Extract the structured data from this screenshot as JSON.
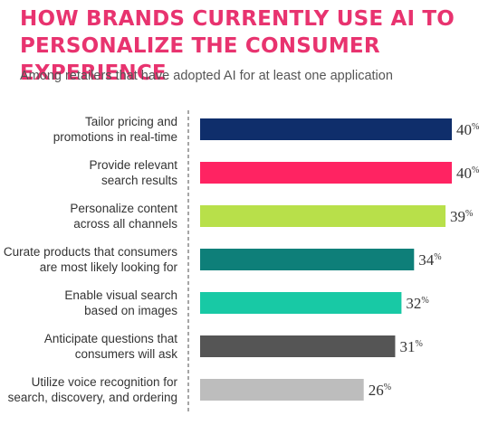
{
  "title": "HOW BRANDS CURRENTLY USE AI TO PERSONALIZE THE CONSUMER EXPERIENCE",
  "subtitle": "Among retailers that have adopted AI for at least one application",
  "chart_data": {
    "type": "bar",
    "orientation": "horizontal",
    "categories": [
      [
        "Tailor pricing and",
        "promotions in real-time"
      ],
      [
        "Provide relevant",
        "search results"
      ],
      [
        "Personalize content",
        "across all channels"
      ],
      [
        "Curate products that consumers",
        "are most likely looking for"
      ],
      [
        "Enable visual search",
        "based on images"
      ],
      [
        "Anticipate questions that",
        "consumers will ask"
      ],
      [
        "Utilize voice recognition for",
        "search, discovery, and ordering"
      ]
    ],
    "values": [
      40,
      40,
      39,
      34,
      32,
      31,
      26
    ],
    "value_suffix": "%",
    "colors": [
      "#0f2e6b",
      "#ff2362",
      "#b8e04a",
      "#0e7f79",
      "#18c9a5",
      "#555555",
      "#bdbdbd"
    ],
    "title": "HOW BRANDS CURRENTLY USE AI TO PERSONALIZE THE CONSUMER EXPERIENCE",
    "xlabel": "",
    "ylabel": "",
    "xlim": [
      0,
      40
    ],
    "grid": false,
    "legend": "none"
  }
}
